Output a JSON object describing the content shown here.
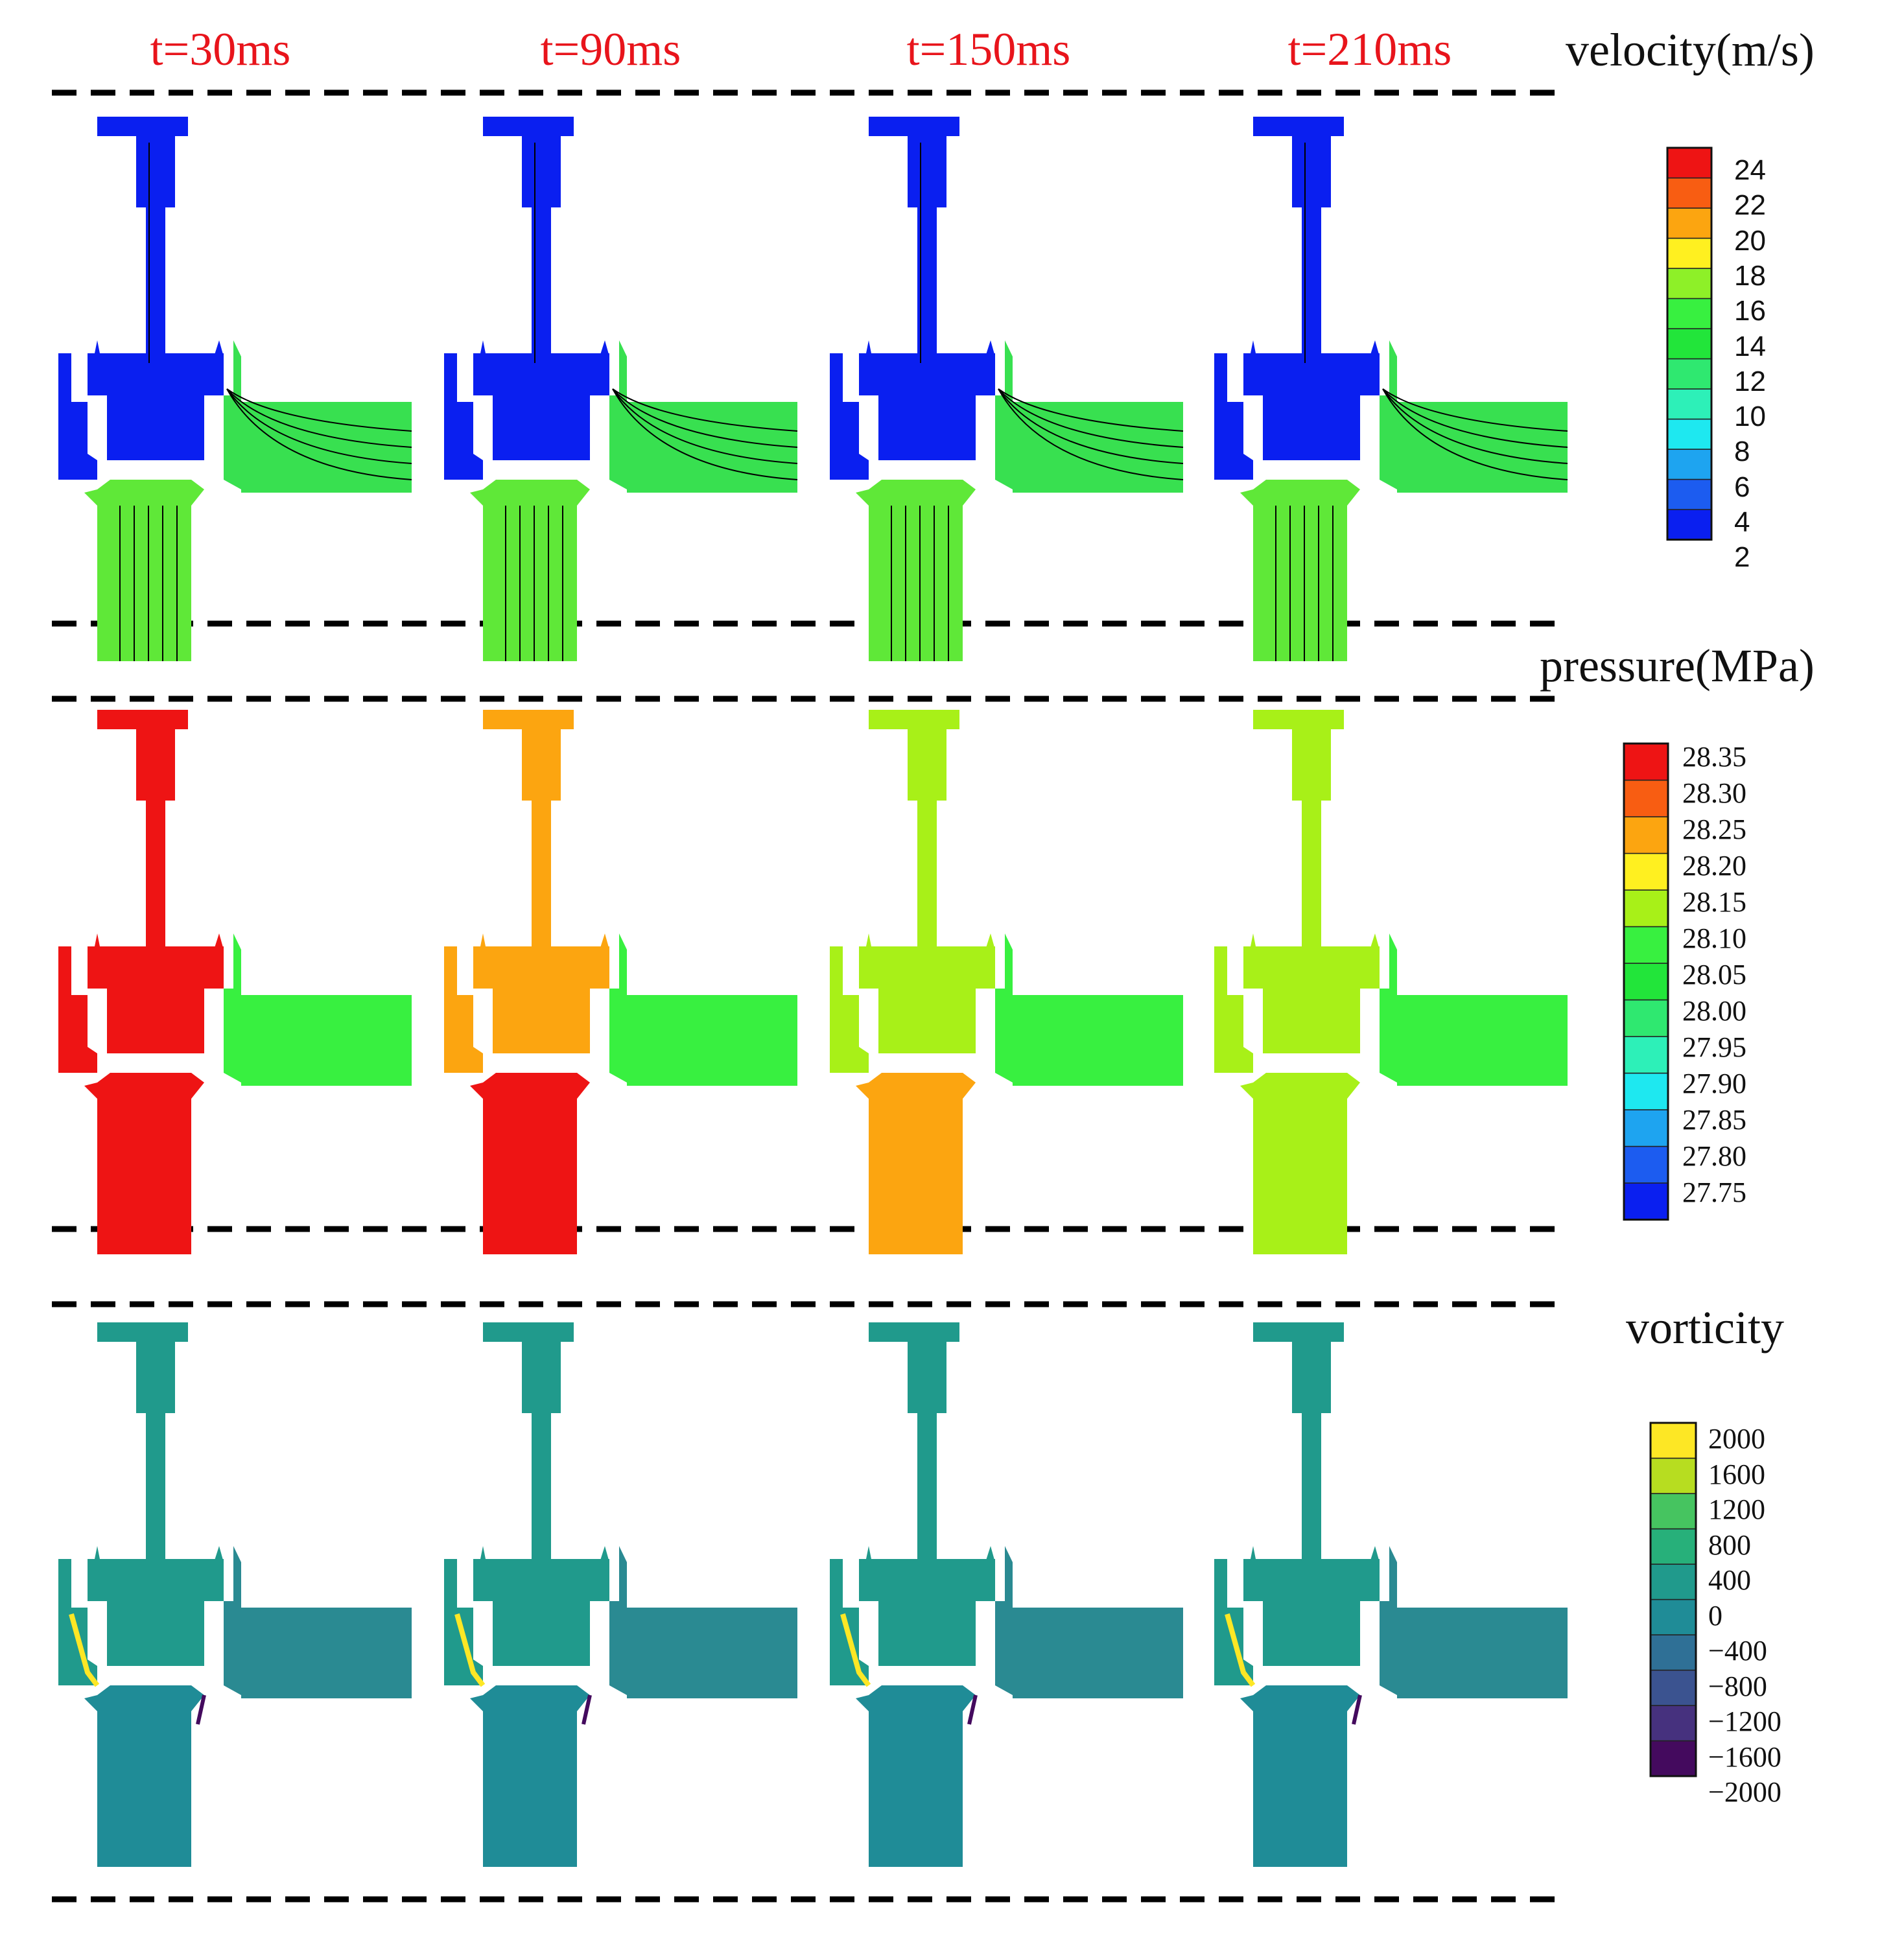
{
  "time_labels": [
    "t=30ms",
    "t=90ms",
    "t=150ms",
    "t=210ms"
  ],
  "colors": {
    "time_label": "#e8141b",
    "geometry_blue": "#0a1ff0",
    "velocity_scale": [
      "#0a1ff0",
      "#1c5cf0",
      "#1ea4f0",
      "#1ee8f0",
      "#2df0b8",
      "#2fe870",
      "#22e53a",
      "#38f040",
      "#8ef028",
      "#fff020",
      "#fca510",
      "#f85d12",
      "#ee1414"
    ],
    "pressure_scale": [
      "#0a1ff0",
      "#1c5cf0",
      "#1ea4f0",
      "#1ee8f0",
      "#2df0b8",
      "#2fe870",
      "#22e53a",
      "#38f040",
      "#a8f018",
      "#fff020",
      "#fca510",
      "#f85d12",
      "#ee1414"
    ],
    "vorticity_scale": [
      "#440a5e",
      "#46317e",
      "#3b5390",
      "#2f7096",
      "#1f8c97",
      "#209a8c",
      "#27b07a",
      "#46c460",
      "#b7dd20",
      "#fde725"
    ]
  },
  "panels": {
    "velocity": {
      "title": "velocity(m/s)",
      "ticks": [
        "24",
        "22",
        "20",
        "18",
        "16",
        "14",
        "12",
        "10",
        "8",
        "6",
        "4",
        "2"
      ]
    },
    "pressure": {
      "title": "pressure(MPa)",
      "ticks": [
        "28.35",
        "28.30",
        "28.25",
        "28.20",
        "28.15",
        "28.10",
        "28.05",
        "28.00",
        "27.95",
        "27.90",
        "27.85",
        "27.80",
        "27.75"
      ],
      "fill_by_time": {
        "upper": [
          "#ee1414",
          "#fca510",
          "#a8f018",
          "#a8f018"
        ],
        "lower": [
          "#ee1414",
          "#ee1414",
          "#fca510",
          "#a8f018"
        ],
        "outlet": [
          "#38f040",
          "#38f040",
          "#38f040",
          "#38f040"
        ]
      }
    },
    "vorticity": {
      "title": "vorticity",
      "ticks": [
        "2000",
        "1600",
        "1200",
        "800",
        "400",
        "0",
        "−400",
        "−800",
        "−1200",
        "−1600",
        "−2000"
      ]
    }
  }
}
